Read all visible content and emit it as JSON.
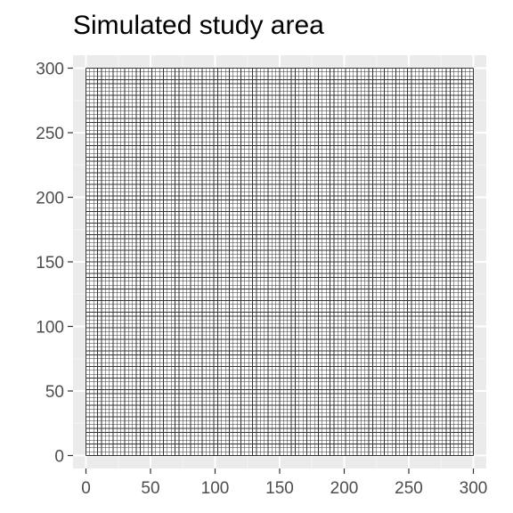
{
  "title": "Simulated study area",
  "colors": {
    "panel_background": "#ebebeb",
    "major_grid": "#ffffff",
    "minor_grid": "#f5f5f5",
    "cell_fill": "#ffffff",
    "cell_border": "#333333",
    "tick_mark": "#333333",
    "tick_label": "#4d4d4d"
  },
  "chart_data": {
    "type": "heatmap",
    "title": "Simulated study area",
    "xlabel": "",
    "ylabel": "",
    "xlim": [
      -10,
      310
    ],
    "ylim": [
      -10,
      310
    ],
    "x_ticks": [
      0,
      50,
      100,
      150,
      200,
      250,
      300
    ],
    "y_ticks": [
      0,
      50,
      100,
      150,
      200,
      250,
      300
    ],
    "x_tick_labels": [
      "0",
      "50",
      "100",
      "150",
      "200",
      "250",
      "300"
    ],
    "y_tick_labels": [
      "0",
      "50",
      "100",
      "150",
      "200",
      "250",
      "300"
    ],
    "grid": true,
    "legend": "none",
    "study_area": {
      "x_range": [
        0,
        300
      ],
      "y_range": [
        0,
        300
      ],
      "cell_size": 3
    }
  }
}
